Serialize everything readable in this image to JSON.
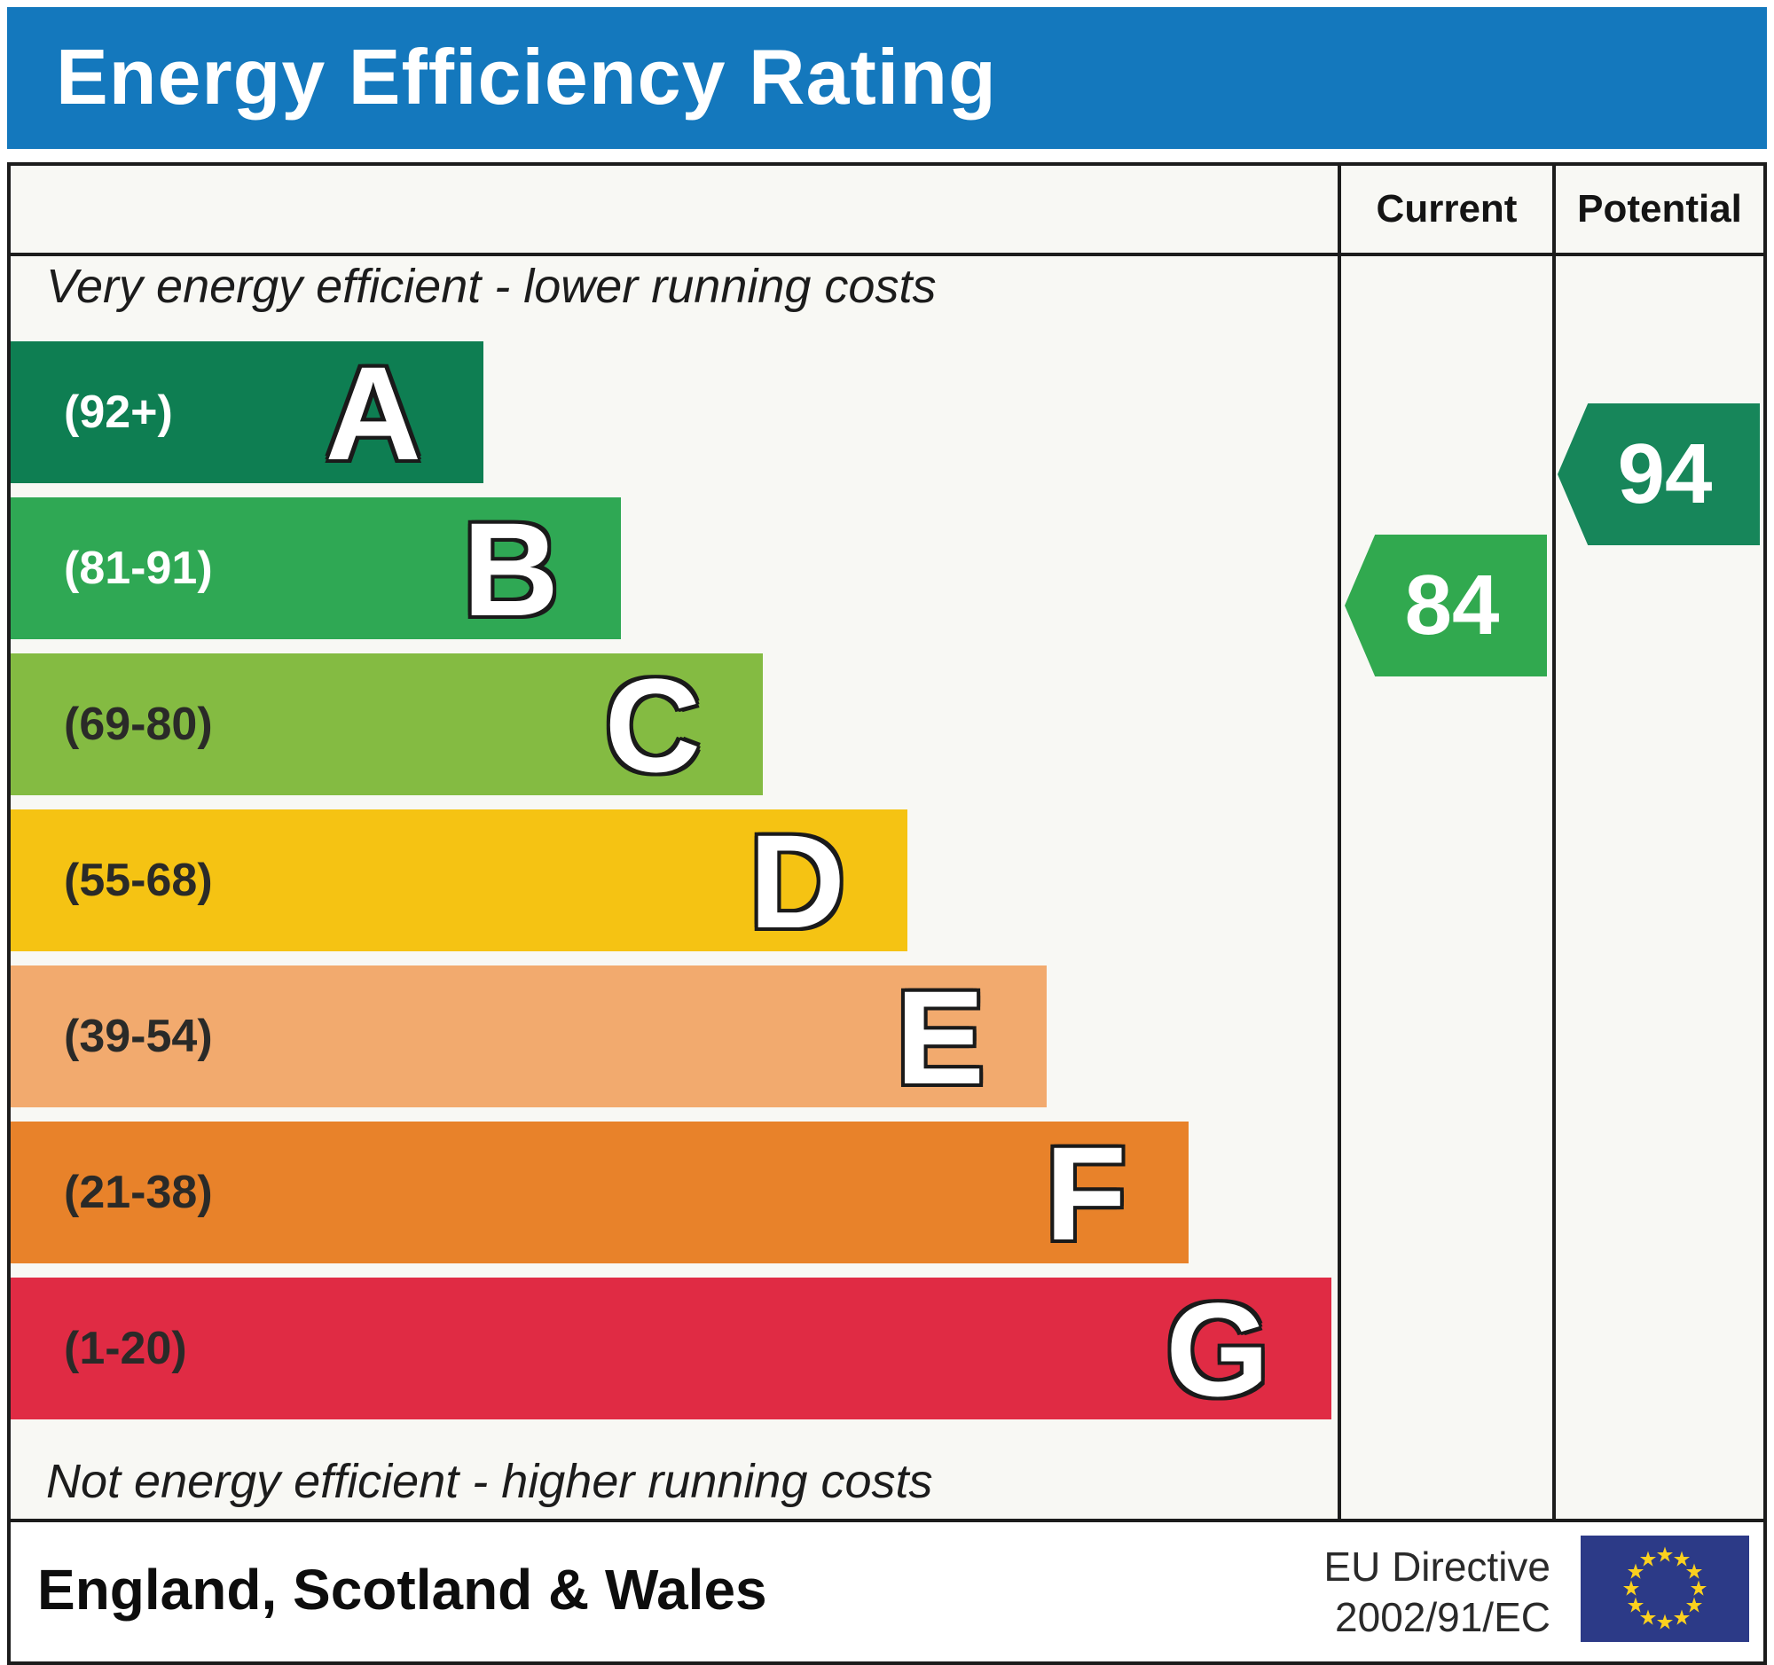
{
  "header": {
    "title": "Energy Efficiency Rating"
  },
  "table": {
    "current_label": "Current",
    "potential_label": "Potential"
  },
  "captions": {
    "top": "Very energy efficient - lower running costs",
    "bottom": "Not energy efficient - higher running costs"
  },
  "bands": [
    {
      "letter": "A",
      "range": "(92+)",
      "color": "#0e7e52",
      "width_pct": 35.6,
      "text_color": "#ffffff"
    },
    {
      "letter": "B",
      "range": "(81-91)",
      "color": "#2fa854",
      "width_pct": 46.0,
      "text_color": "#ffffff"
    },
    {
      "letter": "C",
      "range": "(69-80)",
      "color": "#84bb42",
      "width_pct": 56.7,
      "text_color": "#2a2a28"
    },
    {
      "letter": "D",
      "range": "(55-68)",
      "color": "#f5c313",
      "width_pct": 67.6,
      "text_color": "#2a2a28"
    },
    {
      "letter": "E",
      "range": "(39-54)",
      "color": "#f2aa6e",
      "width_pct": 78.1,
      "text_color": "#2a2a28"
    },
    {
      "letter": "F",
      "range": "(21-38)",
      "color": "#e8822a",
      "width_pct": 88.8,
      "text_color": "#2a2a28"
    },
    {
      "letter": "G",
      "range": "(1-20)",
      "color": "#e02b44",
      "width_pct": 99.5,
      "text_color": "#2a2a28"
    }
  ],
  "ratings": {
    "current": {
      "value": "84",
      "color": "#31a94f"
    },
    "potential": {
      "value": "94",
      "color": "#17865a"
    }
  },
  "footer": {
    "region": "England, Scotland & Wales",
    "directive_line1": "EU Directive",
    "directive_line2": "2002/91/EC",
    "flag_colors": {
      "field": "#2c3a87",
      "stars": "#fcd11e"
    }
  },
  "chart_data": {
    "type": "bar",
    "title": "Energy Efficiency Rating",
    "categories": [
      "A",
      "B",
      "C",
      "D",
      "E",
      "F",
      "G"
    ],
    "band_ranges": [
      "92+",
      "81-91",
      "69-80",
      "55-68",
      "39-54",
      "21-38",
      "1-20"
    ],
    "band_colors": [
      "#0e7e52",
      "#2fa854",
      "#84bb42",
      "#f5c313",
      "#f2aa6e",
      "#e8822a",
      "#e02b44"
    ],
    "relative_bar_lengths_pct": [
      36,
      46,
      57,
      68,
      78,
      89,
      100
    ],
    "scale": [
      1,
      100
    ],
    "series": [
      {
        "name": "Current",
        "values": [
          84
        ],
        "band": "B",
        "color": "#31a94f"
      },
      {
        "name": "Potential",
        "values": [
          94
        ],
        "band": "A",
        "color": "#17865a"
      }
    ],
    "top_annotation": "Very energy efficient - lower running costs",
    "bottom_annotation": "Not energy efficient - higher running costs",
    "region": "England, Scotland & Wales",
    "directive": "EU Directive 2002/91/EC",
    "legend_position": "none",
    "grid": false
  }
}
